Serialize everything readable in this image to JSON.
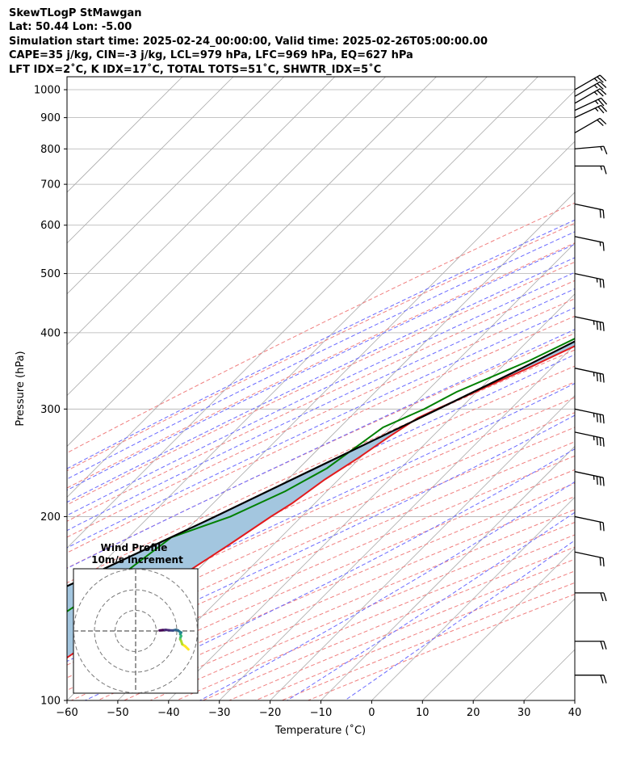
{
  "header": {
    "line1": "SkewTLogP StMawgan",
    "line2": "Lat: 50.44   Lon: -5.00",
    "line3": "Simulation start time: 2025-02-24_00:00:00, Valid time: 2025-02-26T05:00:00.00",
    "line4": "CAPE=35 j/kg, CIN=-3 j/kg, LCL=979 hPa, LFC=969 hPa, EQ=627 hPa",
    "line5": "LFT IDX=2˚C, K IDX=17˚C, TOTAL TOTS=51˚C, SHWTR_IDX=5˚C"
  },
  "chart_data": {
    "type": "line",
    "title": "SkewTLogP StMawgan",
    "xlabel": "Temperature (˚C)",
    "ylabel": "Pressure (hPa)",
    "xlim": [
      -60,
      40
    ],
    "ylim": [
      1050,
      100
    ],
    "y_scale": "log",
    "skew": "45-degree",
    "x_ticks": [
      -60,
      -50,
      -40,
      -30,
      -20,
      -10,
      0,
      10,
      20,
      30,
      40
    ],
    "x_tick_labels": [
      "−60",
      "−50",
      "−40",
      "−30",
      "−20",
      "−10",
      "0",
      "10",
      "20",
      "30",
      "40"
    ],
    "y_ticks": [
      100,
      200,
      300,
      400,
      500,
      600,
      700,
      800,
      900,
      1000
    ],
    "y_tick_labels": [
      "100",
      "200",
      "300",
      "400",
      "500",
      "600",
      "700",
      "800",
      "900",
      "1000"
    ],
    "grid": true,
    "colors": {
      "temperature": "#e31a1c",
      "dewpoint": "#008000",
      "parcel": "#000000",
      "cape_fill": "#a3c6df",
      "dry_adiabat": "#f08080",
      "moist_adiabat": "#6a6aff",
      "mixing_ratio": "#a05ad2",
      "isotherm": "#aaaaaa"
    },
    "series": [
      {
        "kind": "temperature",
        "points": [
          [
            1000,
            9.9
          ],
          [
            975,
            8.6
          ],
          [
            950,
            7.6
          ],
          [
            925,
            6.6
          ],
          [
            900,
            5.6
          ],
          [
            875,
            4.6
          ],
          [
            850,
            3.5
          ],
          [
            800,
            1.2
          ],
          [
            750,
            -1.0
          ],
          [
            700,
            -3.4
          ],
          [
            650,
            -5.6
          ],
          [
            600,
            -8.2
          ],
          [
            550,
            -11.3
          ],
          [
            500,
            -15.5
          ],
          [
            450,
            -21.0
          ],
          [
            400,
            -26.8
          ],
          [
            350,
            -34.6
          ],
          [
            300,
            -44.5
          ],
          [
            290,
            -46.5
          ],
          [
            270,
            -48.5
          ],
          [
            250,
            -50.3
          ],
          [
            230,
            -52.7
          ],
          [
            210,
            -54.5
          ],
          [
            200,
            -56.0
          ],
          [
            180,
            -58.7
          ],
          [
            160,
            -62.0
          ],
          [
            140,
            -64.5
          ],
          [
            130,
            -66.0
          ],
          [
            110,
            -70.0
          ],
          [
            100,
            -71.5
          ]
        ]
      },
      {
        "kind": "dewpoint",
        "points": [
          [
            1000,
            8.6
          ],
          [
            975,
            8.0
          ],
          [
            950,
            6.8
          ],
          [
            925,
            5.6
          ],
          [
            900,
            4.0
          ],
          [
            875,
            0.8
          ],
          [
            850,
            -3.5
          ],
          [
            800,
            -12.0
          ],
          [
            770,
            -16.0
          ],
          [
            720,
            -16.0
          ],
          [
            680,
            -16.0
          ],
          [
            650,
            -15.0
          ],
          [
            600,
            -15.4
          ],
          [
            550,
            -17.4
          ],
          [
            500,
            -20.0
          ],
          [
            450,
            -24.6
          ],
          [
            400,
            -30.0
          ],
          [
            360,
            -35.8
          ],
          [
            320,
            -44.0
          ],
          [
            300,
            -47.0
          ],
          [
            280,
            -51.5
          ],
          [
            240,
            -54.5
          ],
          [
            220,
            -58.2
          ],
          [
            200,
            -64.0
          ],
          [
            185,
            -71.5
          ],
          [
            160,
            -74.0
          ],
          [
            140,
            -77.5
          ],
          [
            120,
            -82.0
          ],
          [
            100,
            -89.0
          ]
        ]
      },
      {
        "kind": "parcel",
        "points": [
          [
            1000,
            10.4
          ],
          [
            979,
            8.6
          ],
          [
            950,
            7.6
          ],
          [
            900,
            5.6
          ],
          [
            850,
            3.4
          ],
          [
            800,
            1.0
          ],
          [
            750,
            -1.6
          ],
          [
            700,
            -4.3
          ],
          [
            650,
            -7.4
          ],
          [
            600,
            -10.7
          ],
          [
            550,
            -14.5
          ],
          [
            500,
            -18.6
          ],
          [
            450,
            -23.5
          ],
          [
            400,
            -29.0
          ],
          [
            350,
            -35.8
          ],
          [
            300,
            -44.2
          ],
          [
            250,
            -54.5
          ],
          [
            200,
            -67.0
          ],
          [
            150,
            -84.0
          ],
          [
            120,
            -97.0
          ],
          [
            100,
            -108.0
          ]
        ]
      }
    ],
    "wind_barbs": [
      {
        "p": 1000,
        "speed_kt": 25,
        "dir_deg": 240
      },
      {
        "p": 975,
        "speed_kt": 25,
        "dir_deg": 240
      },
      {
        "p": 950,
        "speed_kt": 25,
        "dir_deg": 240
      },
      {
        "p": 925,
        "speed_kt": 25,
        "dir_deg": 245
      },
      {
        "p": 900,
        "speed_kt": 25,
        "dir_deg": 245
      },
      {
        "p": 850,
        "speed_kt": 20,
        "dir_deg": 240
      },
      {
        "p": 800,
        "speed_kt": 15,
        "dir_deg": 265
      },
      {
        "p": 750,
        "speed_kt": 15,
        "dir_deg": 270
      },
      {
        "p": 650,
        "speed_kt": 20,
        "dir_deg": 282
      },
      {
        "p": 575,
        "speed_kt": 15,
        "dir_deg": 282
      },
      {
        "p": 500,
        "speed_kt": 25,
        "dir_deg": 282
      },
      {
        "p": 425,
        "speed_kt": 35,
        "dir_deg": 282
      },
      {
        "p": 350,
        "speed_kt": 35,
        "dir_deg": 282
      },
      {
        "p": 300,
        "speed_kt": 35,
        "dir_deg": 282
      },
      {
        "p": 275,
        "speed_kt": 35,
        "dir_deg": 282
      },
      {
        "p": 237,
        "speed_kt": 35,
        "dir_deg": 282
      },
      {
        "p": 200,
        "speed_kt": 20,
        "dir_deg": 282
      },
      {
        "p": 175,
        "speed_kt": 20,
        "dir_deg": 282
      },
      {
        "p": 150,
        "speed_kt": 20,
        "dir_deg": 270
      },
      {
        "p": 125,
        "speed_kt": 20,
        "dir_deg": 270
      },
      {
        "p": 110,
        "speed_kt": 20,
        "dir_deg": 270
      }
    ],
    "inset": {
      "title_line1": "Wind Profile",
      "title_line2": "10m/s increment",
      "rings": 3,
      "colormap": "viridis",
      "hodograph_uv": [
        [
          8.0,
          -7.0
        ],
        [
          6.5,
          -5.5
        ],
        [
          5.0,
          -4.5
        ],
        [
          4.5,
          -3.0
        ],
        [
          4.0,
          -2.0
        ],
        [
          4.2,
          -1.0
        ],
        [
          4.5,
          -0.5
        ],
        [
          4.0,
          0.5
        ],
        [
          4.5,
          1.2
        ],
        [
          3.5,
          1.8
        ],
        [
          3.0,
          2.2
        ],
        [
          1.8,
          2.5
        ],
        [
          0.5,
          2.2
        ],
        [
          -1.5,
          2.3
        ],
        [
          -3.0,
          2.5
        ],
        [
          -4.5,
          2.4
        ],
        [
          -6.0,
          2.2
        ]
      ]
    }
  }
}
